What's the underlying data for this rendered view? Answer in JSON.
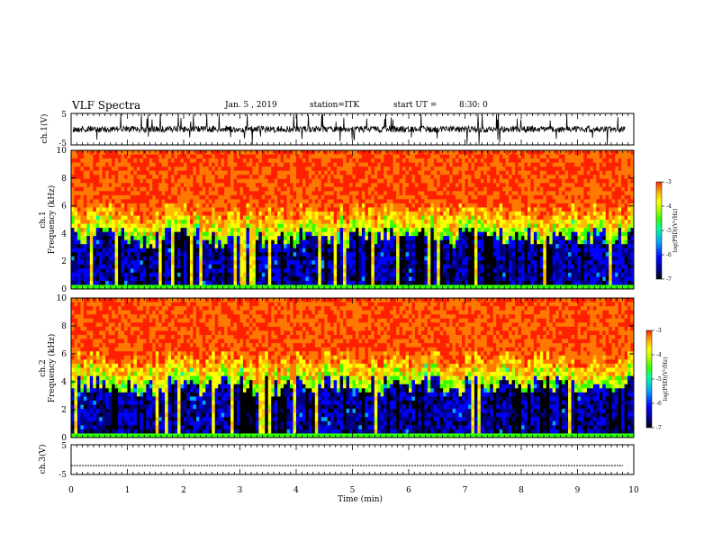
{
  "header": {
    "title": "VLF Spectra",
    "date": "Jan. 5 , 2019",
    "station": "station=ITK",
    "start_ut_label": "start UT =",
    "start_ut_value": "8:30: 0"
  },
  "colors": {
    "spectro_scale": [
      "#000000",
      "#00007f",
      "#0000ff",
      "#00a5ff",
      "#00ff9f",
      "#33ff00",
      "#b4ff00",
      "#ffff00",
      "#ffc000",
      "#ff7800",
      "#ff2000"
    ],
    "trace": "#000000"
  },
  "chart_data": [
    {
      "type": "line",
      "id": "ch1",
      "title": "VLF Spectra",
      "ylabel": "ch.1(V)",
      "xlim": [
        0,
        10
      ],
      "ylim": [
        -5,
        5
      ],
      "y_ticks": [
        "5",
        "-5"
      ],
      "series": [
        {
          "values_note": "noisy waveform around 0 V with spikes to ±5 V"
        }
      ]
    },
    {
      "type": "heatmap",
      "id": "ch1_spec",
      "ylabel_line1": "ch.1",
      "ylabel_line2": "Frequency (kHz)",
      "xlim": [
        0,
        10
      ],
      "ylim": [
        0,
        10
      ],
      "y_ticks": [
        "0",
        "2",
        "4",
        "6",
        "8",
        "10"
      ],
      "colorbar": {
        "label": "log(PSD)(V²/Hz)",
        "range": [
          -7,
          -3
        ],
        "ticks": [
          "-3",
          "-4",
          "-5",
          "-6",
          "-7"
        ]
      }
    },
    {
      "type": "heatmap",
      "id": "ch2_spec",
      "ylabel_line1": "ch.2",
      "ylabel_line2": "Frequency (kHz)",
      "xlim": [
        0,
        10
      ],
      "ylim": [
        0,
        10
      ],
      "y_ticks": [
        "0",
        "2",
        "4",
        "6",
        "8",
        "10"
      ],
      "colorbar": {
        "label": "log(PSD)(V²/Hz)",
        "range": [
          -7,
          -3
        ],
        "ticks": [
          "-3",
          "-4",
          "-5",
          "-6",
          "-7"
        ]
      }
    },
    {
      "type": "line",
      "id": "ch3",
      "ylabel": "ch.3(V)",
      "xlabel": "Time (min)",
      "xlim": [
        0,
        10
      ],
      "ylim": [
        -5,
        5
      ],
      "y_ticks": [
        "5",
        "-5"
      ],
      "x_ticks": [
        "0",
        "1",
        "2",
        "3",
        "4",
        "5",
        "6",
        "7",
        "8",
        "9",
        "10"
      ],
      "series": [
        {
          "values": [
            -2,
            -2
          ]
        }
      ]
    }
  ]
}
